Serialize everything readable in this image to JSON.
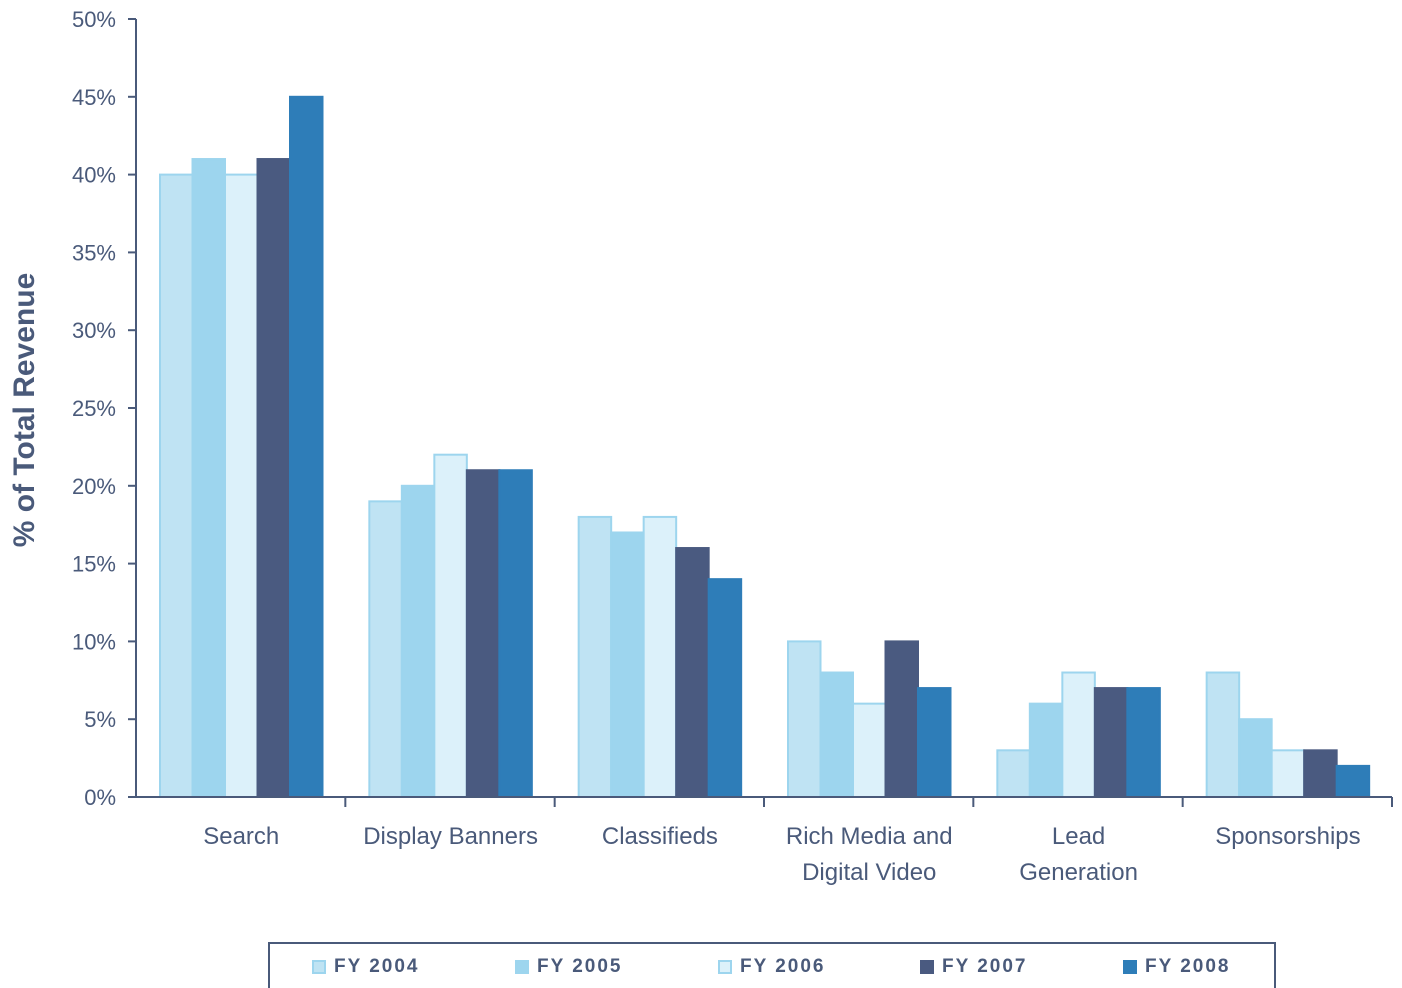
{
  "chart_data": {
    "type": "bar",
    "ylabel": "% of Total Revenue",
    "xlabel": "",
    "ylim": [
      0,
      50
    ],
    "y_ticks": [
      "0%",
      "5%",
      "10%",
      "15%",
      "20%",
      "25%",
      "30%",
      "35%",
      "40%",
      "45%",
      "50%"
    ],
    "categories": [
      [
        "Search"
      ],
      [
        "Display Banners"
      ],
      [
        "Classifieds"
      ],
      [
        "Rich Media and",
        "Digital Video"
      ],
      [
        "Lead",
        "Generation"
      ],
      [
        "Sponsorships"
      ]
    ],
    "series": [
      {
        "name": "FY 2004",
        "color": "#bfe3f3",
        "values": [
          40,
          19,
          18,
          10,
          3,
          8
        ]
      },
      {
        "name": "FY 2005",
        "color": "#9dd5ee",
        "values": [
          41,
          20,
          17,
          8,
          6,
          5
        ]
      },
      {
        "name": "FY 2006",
        "color": "#dcf1fa",
        "values": [
          40,
          22,
          18,
          6,
          8,
          3
        ]
      },
      {
        "name": "FY 2007",
        "color": "#4a5a80",
        "values": [
          41,
          21,
          16,
          10,
          7,
          3
        ]
      },
      {
        "name": "FY 2008",
        "color": "#2e7db8",
        "values": [
          45,
          21,
          14,
          7,
          7,
          2
        ]
      }
    ],
    "legend_position": "bottom",
    "grid": false
  }
}
